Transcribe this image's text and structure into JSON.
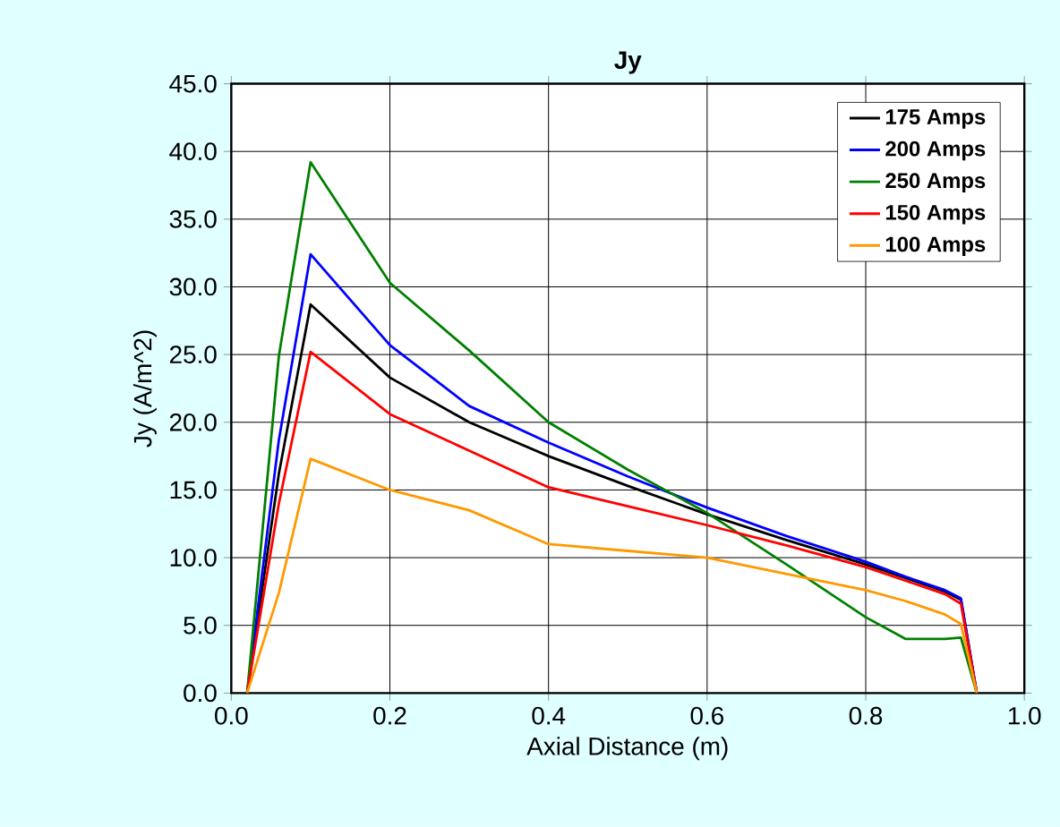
{
  "chart_data": {
    "type": "line",
    "title": "Jy",
    "xlabel": "Axial Distance (m)",
    "ylabel": "Jy  (A/m^2)",
    "xlim": [
      0,
      1.0
    ],
    "ylim": [
      0,
      45
    ],
    "xticks": [
      {
        "value": 0,
        "label": "0.0"
      },
      {
        "value": 0.2,
        "label": "0.2"
      },
      {
        "value": 0.4,
        "label": "0.4"
      },
      {
        "value": 0.6,
        "label": "0.6"
      },
      {
        "value": 0.8,
        "label": "0.8"
      },
      {
        "value": 1.0,
        "label": "1.0"
      }
    ],
    "yticks": [
      {
        "value": 0,
        "label": "0.0"
      },
      {
        "value": 5,
        "label": "5.0"
      },
      {
        "value": 10,
        "label": "10.0"
      },
      {
        "value": 15,
        "label": "15.0"
      },
      {
        "value": 20,
        "label": "20.0"
      },
      {
        "value": 25,
        "label": "25.0"
      },
      {
        "value": 30,
        "label": "30.0"
      },
      {
        "value": 35,
        "label": "35.0"
      },
      {
        "value": 40,
        "label": "40.0"
      },
      {
        "value": 45,
        "label": "45.0"
      }
    ],
    "grid": true,
    "legend": "top right",
    "marker": "none",
    "line_style": "solid",
    "x": [
      0.02,
      0.06,
      0.1,
      0.2,
      0.3,
      0.4,
      0.5,
      0.6,
      0.7,
      0.8,
      0.85,
      0.9,
      0.92,
      0.94
    ],
    "series": [
      {
        "name": "175 Amps",
        "color": "#000000",
        "values": [
          0,
          16.2,
          28.7,
          23.3,
          20.0,
          17.5,
          15.3,
          13.2,
          11.3,
          9.5,
          8.5,
          7.5,
          6.9,
          0
        ]
      },
      {
        "name": "200 Amps",
        "color": "#0000ff",
        "values": [
          0,
          18.7,
          32.4,
          25.7,
          21.2,
          18.5,
          16.0,
          13.7,
          11.6,
          9.7,
          8.6,
          7.6,
          7.0,
          0
        ]
      },
      {
        "name": "250 Amps",
        "color": "#008000",
        "values": [
          0,
          24.9,
          39.2,
          30.3,
          25.3,
          20.0,
          16.5,
          13.3,
          9.5,
          5.6,
          4.0,
          4.0,
          4.1,
          0
        ]
      },
      {
        "name": "150 Amps",
        "color": "#ff0000",
        "values": [
          0,
          14.0,
          25.2,
          20.6,
          17.9,
          15.2,
          13.8,
          12.4,
          10.9,
          9.3,
          8.3,
          7.3,
          6.6,
          0
        ]
      },
      {
        "name": "100 Amps",
        "color": "#ff9900",
        "values": [
          0,
          7.4,
          17.3,
          15.0,
          13.5,
          11.0,
          10.5,
          10.0,
          8.8,
          7.6,
          6.8,
          5.8,
          5.1,
          0
        ]
      }
    ]
  }
}
